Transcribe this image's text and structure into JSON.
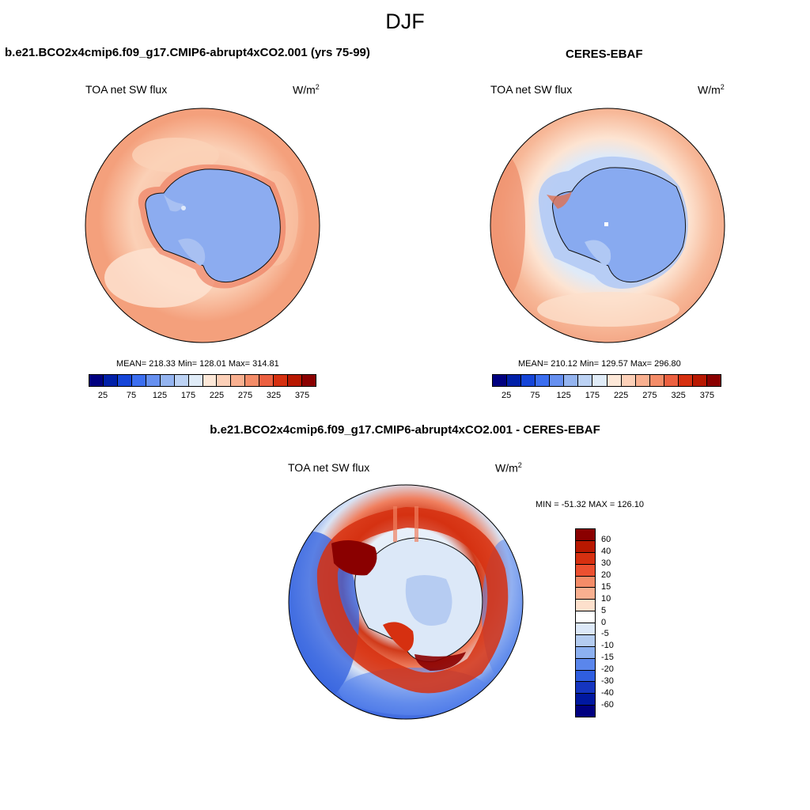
{
  "title": "DJF",
  "panels": {
    "model": {
      "title": "b.e21.BCO2x4cmip6.f09_g17.CMIP6-abrupt4xCO2.001 (yrs 75-99)",
      "variable": "TOA net SW flux",
      "units_base": "W/m",
      "units_exp": "2",
      "stats": "MEAN= 218.33  Min= 128.01  Max= 314.81"
    },
    "obs": {
      "title": "CERES-EBAF",
      "variable": "TOA net SW flux",
      "units_base": "W/m",
      "units_exp": "2",
      "stats": "MEAN= 210.12  Min= 129.57  Max= 296.80"
    },
    "diff": {
      "title": "b.e21.BCO2x4cmip6.f09_g17.CMIP6-abrupt4xCO2.001 - CERES-EBAF",
      "variable": "TOA net SW flux",
      "units_base": "W/m",
      "units_exp": "2",
      "stats": "MIN = -51.32 MAX = 126.10"
    }
  },
  "colorbar_main": {
    "colors": [
      "#000080",
      "#0020a8",
      "#1545d8",
      "#3b6ef0",
      "#6690f0",
      "#94b4f0",
      "#bcd2f4",
      "#e0ecf8",
      "#fde8d8",
      "#fcd0b8",
      "#f9b090",
      "#f48c68",
      "#ec6040",
      "#d63010",
      "#b81800",
      "#8a0000"
    ],
    "ticks": [
      "25",
      "75",
      "125",
      "175",
      "225",
      "275",
      "325",
      "375"
    ]
  },
  "colorbar_diff": {
    "colors": [
      "#8a0000",
      "#b81800",
      "#d63010",
      "#ec5030",
      "#f48c68",
      "#f9b090",
      "#fde0cc",
      "#ffffff",
      "#dce8f8",
      "#b4ccf0",
      "#8cb0f0",
      "#5a86ec",
      "#2f5ee0",
      "#1535c0",
      "#0018a0",
      "#000080"
    ],
    "ticks": [
      "60",
      "40",
      "30",
      "20",
      "15",
      "10",
      "5",
      "0",
      "-5",
      "-10",
      "-15",
      "-20",
      "-30",
      "-40",
      "-60"
    ]
  },
  "map_colors": {
    "model": {
      "ocean_outer": "#f4a07c",
      "ocean_mid": "#fbd0b6",
      "ocean_inner": "#f6b294",
      "land": "#8cacf0",
      "land_light": "#a8c0f2",
      "coast_band": "#ec7a5c"
    },
    "obs": {
      "ocean_outer": "#f3a382",
      "ocean_mid": "#fde4d2",
      "ocean_inner": "#c9dbf5",
      "land": "#88aaf0",
      "land_light": "#b0c8f4",
      "coast_band": "#e07050"
    },
    "diff": {
      "ocean_outer": "#3a66e0",
      "ring": "#d03a1a",
      "ring_light": "#f08060",
      "land": "#dce8f8",
      "land_light": "#b6ccf2",
      "hot": "#8a0000"
    }
  }
}
